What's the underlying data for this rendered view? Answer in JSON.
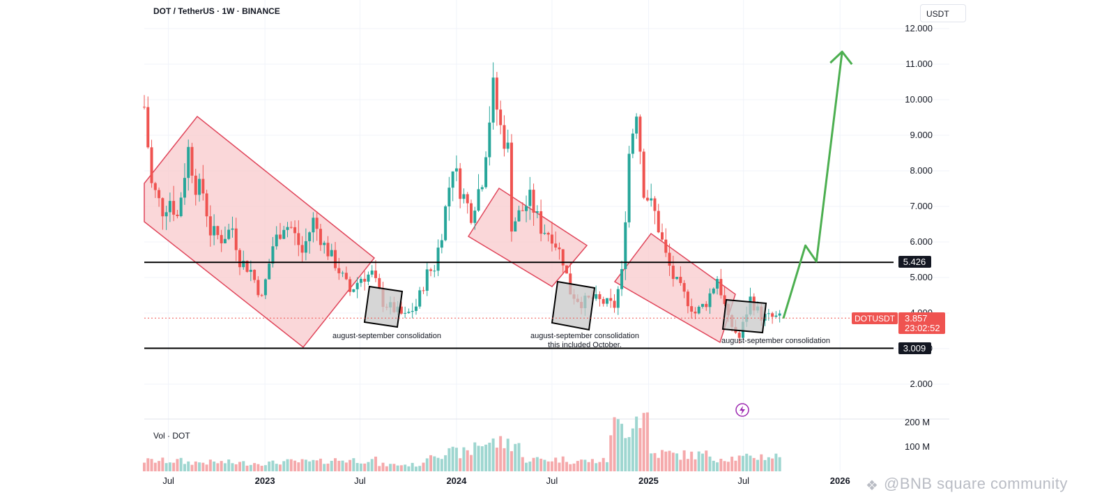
{
  "header": {
    "title": "DOT / TetherUS · 1W · BINANCE",
    "unit": "USDT"
  },
  "volume": {
    "label": "Vol · DOT",
    "ticks": [
      "200 M",
      "100 M"
    ]
  },
  "watermark": {
    "text": "@BNB square community",
    "icon": "bnb-diamond-icon"
  },
  "price_tags": {
    "resistance": "5.426",
    "support": "3.009",
    "symbol": "DOTUSDT",
    "current": "3.857",
    "countdown": "23:02:52"
  },
  "annotations": [
    {
      "text": "august-september consolidation"
    },
    {
      "text": "august-september consolidation"
    },
    {
      "text": "this included October."
    },
    {
      "text": "august-september consolidation"
    }
  ],
  "colors": {
    "up": "#26a69a",
    "down": "#ef5350",
    "channel_fill": "#f8c9cc",
    "channel_stroke": "#e0455a",
    "box_fill": "#c8c8c8",
    "arrow": "#4caf50",
    "level_line": "#000000",
    "price_line": "#ef5350"
  },
  "chart_data": {
    "type": "candlestick",
    "title": "DOT / TetherUS · 1W · BINANCE",
    "ylabel": "USDT",
    "yticks": [
      2.0,
      3.0,
      4.0,
      5.0,
      6.0,
      7.0,
      8.0,
      9.0,
      10.0,
      11.0,
      12.0
    ],
    "ytick_labels": [
      "2.000",
      "3.000",
      "4.000",
      "5.000",
      "6.000",
      "7.000",
      "8.000",
      "9.000",
      "10.000",
      "11.000",
      "12.000"
    ],
    "ylim": [
      1.5,
      12.5
    ],
    "xlim": [
      "2022-05-16",
      "2026-04-13"
    ],
    "xticks": [
      {
        "label": "Jul",
        "date": "2022-07-01"
      },
      {
        "label": "2023",
        "date": "2023-01-01"
      },
      {
        "label": "Jul",
        "date": "2023-07-01"
      },
      {
        "label": "2024",
        "date": "2024-01-01"
      },
      {
        "label": "Jul",
        "date": "2024-07-01"
      },
      {
        "label": "2025",
        "date": "2025-01-01"
      },
      {
        "label": "Jul",
        "date": "2025-07-01"
      },
      {
        "label": "2026",
        "date": "2026-01-01"
      }
    ],
    "horizontal_levels": [
      5.426,
      3.009
    ],
    "current_price": 3.857,
    "price_path": [
      [
        "2022-05-16",
        9.8
      ],
      [
        "2022-05-30",
        7.6
      ],
      [
        "2022-06-20",
        6.9
      ],
      [
        "2022-07-04",
        7.2
      ],
      [
        "2022-07-18",
        6.7
      ],
      [
        "2022-08-08",
        8.6
      ],
      [
        "2022-08-22",
        7.6
      ],
      [
        "2022-09-05",
        7.4
      ],
      [
        "2022-09-19",
        6.3
      ],
      [
        "2022-10-10",
        6.1
      ],
      [
        "2022-10-31",
        6.4
      ],
      [
        "2022-11-14",
        5.5
      ],
      [
        "2022-12-05",
        5.2
      ],
      [
        "2022-12-26",
        4.4
      ],
      [
        "2023-01-16",
        5.9
      ],
      [
        "2023-02-06",
        6.5
      ],
      [
        "2023-02-20",
        6.4
      ],
      [
        "2023-03-13",
        5.7
      ],
      [
        "2023-04-03",
        6.6
      ],
      [
        "2023-04-24",
        5.9
      ],
      [
        "2023-05-15",
        5.4
      ],
      [
        "2023-06-12",
        4.6
      ],
      [
        "2023-07-03",
        5.0
      ],
      [
        "2023-07-24",
        5.1
      ],
      [
        "2023-08-14",
        4.3
      ],
      [
        "2023-09-04",
        4.1
      ],
      [
        "2023-09-25",
        3.9
      ],
      [
        "2023-10-16",
        4.2
      ],
      [
        "2023-11-06",
        5.1
      ],
      [
        "2023-11-20",
        5.3
      ],
      [
        "2023-12-04",
        6.3
      ],
      [
        "2023-12-25",
        8.2
      ],
      [
        "2024-01-08",
        7.5
      ],
      [
        "2024-01-29",
        6.8
      ],
      [
        "2024-02-19",
        7.8
      ],
      [
        "2024-03-04",
        9.5
      ],
      [
        "2024-03-11",
        10.3
      ],
      [
        "2024-03-25",
        9.2
      ],
      [
        "2024-04-08",
        8.6
      ],
      [
        "2024-04-15",
        6.5
      ],
      [
        "2024-05-06",
        6.9
      ],
      [
        "2024-05-20",
        7.2
      ],
      [
        "2024-06-10",
        6.4
      ],
      [
        "2024-07-01",
        6.2
      ],
      [
        "2024-07-22",
        5.5
      ],
      [
        "2024-08-05",
        4.6
      ],
      [
        "2024-08-26",
        4.3
      ],
      [
        "2024-09-16",
        4.4
      ],
      [
        "2024-10-07",
        4.3
      ],
      [
        "2024-10-28",
        4.2
      ],
      [
        "2024-11-11",
        5.1
      ],
      [
        "2024-11-25",
        8.5
      ],
      [
        "2024-12-09",
        9.8
      ],
      [
        "2024-12-23",
        7.5
      ],
      [
        "2025-01-13",
        6.8
      ],
      [
        "2025-02-03",
        5.6
      ],
      [
        "2025-02-17",
        5.0
      ],
      [
        "2025-03-10",
        4.5
      ],
      [
        "2025-03-31",
        4.0
      ],
      [
        "2025-04-21",
        4.3
      ],
      [
        "2025-05-12",
        5.0
      ],
      [
        "2025-06-02",
        3.8
      ],
      [
        "2025-06-23",
        3.3
      ],
      [
        "2025-07-14",
        4.4
      ],
      [
        "2025-08-04",
        3.9
      ],
      [
        "2025-09-08",
        3.857
      ]
    ],
    "volume_millions": [
      [
        "2022-06",
        35
      ],
      [
        "2022-09",
        30
      ],
      [
        "2022-12",
        28
      ],
      [
        "2023-03",
        32
      ],
      [
        "2023-06",
        38
      ],
      [
        "2023-09",
        22
      ],
      [
        "2023-12",
        62
      ],
      [
        "2024-03",
        95
      ],
      [
        "2024-06",
        40
      ],
      [
        "2024-09",
        35
      ],
      [
        "2024-11",
        150
      ],
      [
        "2024-12",
        185
      ],
      [
        "2025-01",
        60
      ],
      [
        "2025-03",
        55
      ],
      [
        "2025-06",
        45
      ],
      [
        "2025-08",
        50
      ]
    ],
    "descending_channels": [
      {
        "start": "2022-05",
        "end": "2023-09"
      },
      {
        "start": "2024-04",
        "end": "2024-10"
      },
      {
        "start": "2025-01",
        "end": "2025-08"
      }
    ],
    "consolidation_boxes": [
      {
        "label": "august-september consolidation",
        "start": "2023-08-14",
        "end": "2023-10-02",
        "low": 3.6,
        "high": 4.5
      },
      {
        "label": "august-september consolidation / this included October.",
        "start": "2024-08-05",
        "end": "2024-10-28",
        "low": 3.7,
        "high": 4.7
      },
      {
        "label": "august-september consolidation",
        "start": "2025-08-04",
        "end": "2025-10-06",
        "low": 3.6,
        "high": 4.4
      }
    ],
    "projection_arrow": [
      [
        "2025-09-15",
        3.85
      ],
      [
        "2025-10-27",
        5.9
      ],
      [
        "2025-11-17",
        5.45
      ],
      [
        "2026-01-05",
        11.35
      ]
    ]
  }
}
